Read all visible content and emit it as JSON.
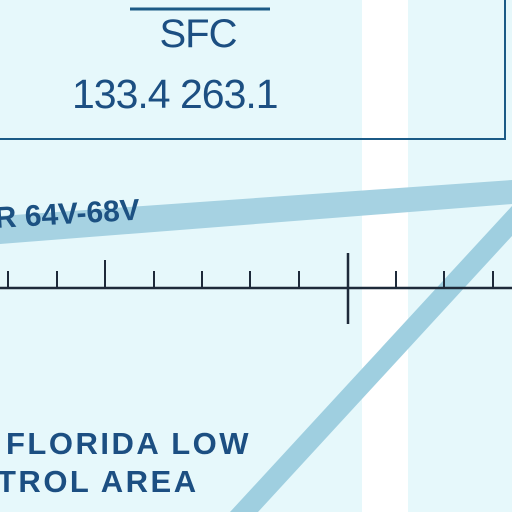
{
  "frequency_box": {
    "facility": "SFC",
    "frequencies": "133.4 263.1"
  },
  "airway": {
    "label": "R 64V-68V"
  },
  "control_area": {
    "line1": "FLORIDA LOW",
    "line2": "TROL AREA"
  },
  "colors": {
    "background": "#e6f8fb",
    "route_band": "#9fcfe0",
    "text": "#1c4f82",
    "border": "#1b5a86",
    "gap": "#ffffff"
  }
}
